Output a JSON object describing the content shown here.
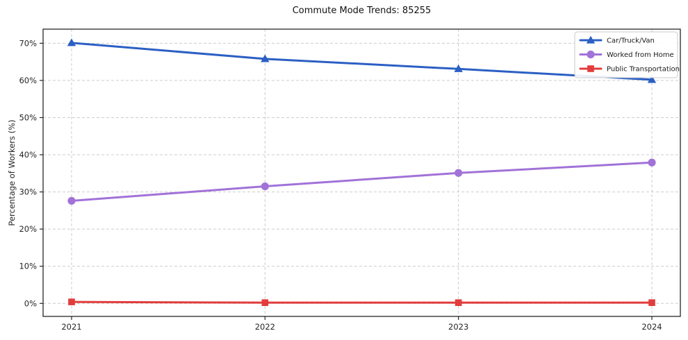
{
  "chart_data": {
    "type": "line",
    "title": "Commute Mode Trends: 85255",
    "xlabel": "",
    "ylabel": "Percentage of Workers (%)",
    "x": [
      2021,
      2022,
      2023,
      2024
    ],
    "x_tick_labels": [
      "2021",
      "2022",
      "2023",
      "2024"
    ],
    "y_tick_values": [
      0,
      10,
      20,
      30,
      40,
      50,
      60,
      70
    ],
    "y_tick_labels": [
      "0%",
      "10%",
      "20%",
      "30%",
      "40%",
      "50%",
      "60%",
      "70%"
    ],
    "ylim": [
      -3.5,
      73.8
    ],
    "grid": true,
    "grid_style": "dashed",
    "legend_position": "upper right",
    "series": [
      {
        "name": "Car/Truck/Van",
        "marker": "triangle",
        "color": "#2b5fc4",
        "values": [
          70.1,
          65.8,
          63.1,
          60.2
        ]
      },
      {
        "name": "Worked from Home",
        "marker": "circle",
        "color": "#a172d8",
        "values": [
          27.6,
          31.5,
          35.1,
          37.9
        ]
      },
      {
        "name": "Public Transportation",
        "marker": "square",
        "color": "#e23c3c",
        "values": [
          0.4,
          0.2,
          0.2,
          0.2
        ]
      }
    ],
    "colors": {
      "grid": "#cccccc",
      "spine": "#262626",
      "tick_label": "#262626",
      "title": "#111111",
      "legend_border": "#c9c9c9",
      "legend_bg": "#ffffff"
    }
  }
}
